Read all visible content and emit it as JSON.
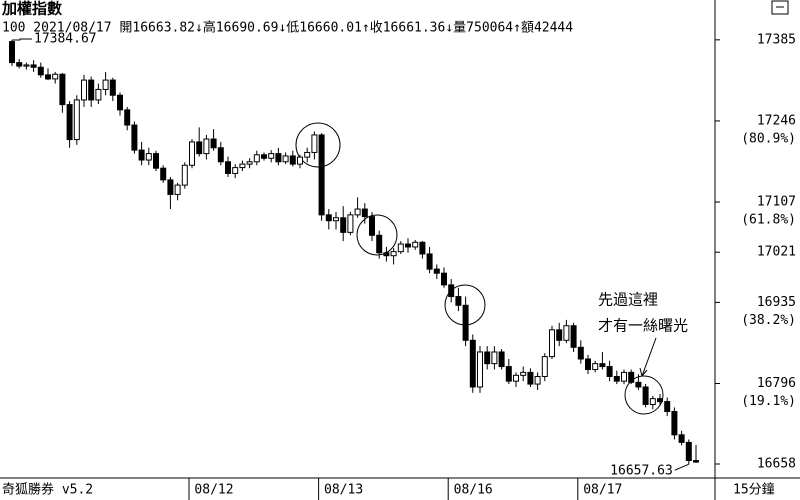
{
  "header": {
    "title": "加權指數",
    "info": "100  2021/08/17  開16663.82↓高16690.69↓低16660.01↑收16661.36↓量750064↑額42444"
  },
  "chart_data": {
    "type": "candlestick",
    "categories": [
      null,
      null,
      null,
      null,
      null,
      null,
      null,
      null,
      null,
      null,
      null,
      null,
      null,
      null,
      null,
      null,
      null,
      null,
      null,
      null,
      null,
      null,
      null,
      null,
      null,
      "08/12",
      null,
      null,
      null,
      null,
      null,
      null,
      null,
      null,
      null,
      null,
      null,
      null,
      null,
      null,
      null,
      null,
      null,
      "08/13",
      null,
      null,
      null,
      null,
      null,
      null,
      null,
      null,
      null,
      null,
      null,
      null,
      null,
      null,
      null,
      null,
      null,
      "08/16",
      null,
      null,
      null,
      null,
      null,
      null,
      null,
      null,
      null,
      null,
      null,
      null,
      null,
      null,
      null,
      null,
      null,
      "08/17",
      null,
      null,
      null,
      null,
      null,
      null,
      null,
      null,
      null,
      null,
      null,
      null,
      null,
      null,
      null,
      null
    ],
    "open": [
      17382,
      17346,
      17340,
      17342,
      17338,
      17325,
      17318,
      17326,
      17274,
      17214,
      17282,
      17316,
      17282,
      17300,
      17316,
      17290,
      17265,
      17239,
      17196,
      17179,
      17190,
      17165,
      17145,
      17120,
      17136,
      17170,
      17210,
      17190,
      17215,
      17200,
      17176,
      17156,
      17166,
      17172,
      17176,
      17188,
      17182,
      17190,
      17176,
      17186,
      17172,
      17184,
      17192,
      17222,
      17085,
      17075,
      17080,
      17055,
      17085,
      17095,
      17082,
      17050,
      17020,
      17015,
      17022,
      17035,
      17030,
      17038,
      17018,
      16992,
      16985,
      16965,
      16945,
      16930,
      16870,
      16790,
      16850,
      16830,
      16850,
      16825,
      16800,
      16810,
      16815,
      16795,
      16808,
      16842,
      16888,
      16870,
      16895,
      16858,
      16838,
      16820,
      16830,
      16825,
      16808,
      16800,
      16815,
      16798,
      16790,
      16760,
      16770,
      16765,
      16748,
      16708,
      16695,
      16663.82
    ],
    "high": [
      17384.67,
      17352,
      17346,
      17350,
      17346,
      17336,
      17330,
      17328,
      17280,
      17290,
      17325,
      17322,
      17310,
      17330,
      17320,
      17295,
      17270,
      17245,
      17210,
      17200,
      17195,
      17170,
      17150,
      17140,
      17175,
      17215,
      17235,
      17222,
      17232,
      17210,
      17185,
      17172,
      17178,
      17182,
      17195,
      17192,
      17196,
      17200,
      17192,
      17195,
      17188,
      17200,
      17228,
      17225,
      17095,
      17090,
      17100,
      17090,
      17115,
      17105,
      17090,
      17058,
      17030,
      17028,
      17040,
      17045,
      17042,
      17040,
      17030,
      17000,
      16995,
      16975,
      16960,
      16945,
      16880,
      16860,
      16860,
      16860,
      16855,
      16838,
      16815,
      16825,
      16822,
      16815,
      16848,
      16895,
      16900,
      16905,
      16900,
      16870,
      16845,
      16835,
      16850,
      16835,
      16818,
      16820,
      16820,
      16812,
      16795,
      16775,
      16778,
      16772,
      16755,
      16715,
      16700,
      16690.69
    ],
    "low": [
      17340,
      17336,
      17334,
      17330,
      17320,
      17316,
      17310,
      17260,
      17200,
      17205,
      17270,
      17270,
      17275,
      17290,
      17280,
      17255,
      17230,
      17190,
      17170,
      17170,
      17160,
      17140,
      17095,
      17110,
      17130,
      17165,
      17185,
      17180,
      17195,
      17170,
      17150,
      17148,
      17160,
      17165,
      17170,
      17178,
      17175,
      17170,
      17172,
      17168,
      17165,
      17175,
      17180,
      17075,
      17060,
      17060,
      17040,
      17050,
      17080,
      17070,
      17040,
      17010,
      17005,
      17000,
      17018,
      17020,
      17025,
      17010,
      16985,
      16975,
      16960,
      16935,
      16920,
      16860,
      16780,
      16780,
      16820,
      16820,
      16820,
      16795,
      16790,
      16800,
      16790,
      16785,
      16800,
      16838,
      16860,
      16865,
      16850,
      16830,
      16812,
      16815,
      16820,
      16800,
      16795,
      16795,
      16795,
      16785,
      16755,
      16752,
      16760,
      16740,
      16700,
      16690,
      16657.63,
      16660.01
    ],
    "close": [
      17346,
      17340,
      17342,
      17338,
      17325,
      17318,
      17326,
      17274,
      17214,
      17282,
      17316,
      17282,
      17300,
      17316,
      17290,
      17265,
      17239,
      17196,
      17179,
      17190,
      17165,
      17145,
      17120,
      17136,
      17170,
      17210,
      17190,
      17215,
      17200,
      17176,
      17156,
      17166,
      17172,
      17176,
      17188,
      17182,
      17190,
      17176,
      17186,
      17172,
      17184,
      17192,
      17222,
      17085,
      17075,
      17080,
      17055,
      17085,
      17095,
      17082,
      17050,
      17020,
      17015,
      17022,
      17035,
      17030,
      17038,
      17018,
      16992,
      16985,
      16965,
      16945,
      16930,
      16870,
      16790,
      16850,
      16830,
      16850,
      16825,
      16800,
      16810,
      16815,
      16795,
      16808,
      16842,
      16888,
      16870,
      16895,
      16858,
      16838,
      16820,
      16830,
      16825,
      16808,
      16800,
      16815,
      16798,
      16790,
      16760,
      16770,
      16765,
      16748,
      16708,
      16695,
      16664,
      16661.36
    ],
    "up_color": "#ffffff",
    "down_color": "#000000",
    "ylim": [
      16634,
      17419
    ],
    "yticks": [
      17385,
      17246,
      17107,
      17021,
      16935,
      16796,
      16658
    ],
    "retracement_labels": [
      {
        "value": 17246,
        "label": "(80.9%)"
      },
      {
        "value": 17107,
        "label": "(61.8%)"
      },
      {
        "value": 16935,
        "label": "(38.2%)"
      },
      {
        "value": 16796,
        "label": "(19.1%)"
      }
    ],
    "max_label": 17384.67,
    "min_label": 16657.63,
    "note": [
      "先過這裡",
      "才有一絲曙光"
    ],
    "timeframe": "15分鐘"
  },
  "footer": {
    "brand": "奇狐勝券 v5.2"
  }
}
